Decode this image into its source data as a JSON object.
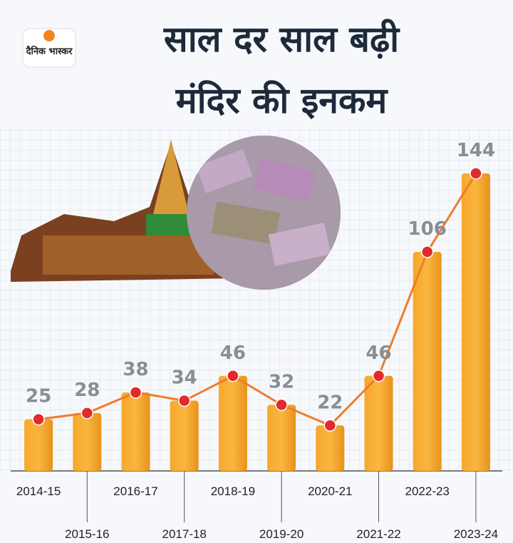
{
  "logo": "दैनिक भास्कर",
  "chart_data": {
    "type": "bar",
    "title": [
      "साल दर साल बढ़ी",
      "मंदिर की इनकम"
    ],
    "categories": [
      "2014-15",
      "2015-16",
      "2016-17",
      "2017-18",
      "2018-19",
      "2019-20",
      "2020-21",
      "2021-22",
      "2022-23",
      "2023-24"
    ],
    "values": [
      25,
      28,
      38,
      34,
      46,
      32,
      22,
      46,
      106,
      144
    ],
    "color": "#f5a21f",
    "line_color": "#f07c2a",
    "marker_color": "#e22a2a",
    "line_overlay": true
  }
}
